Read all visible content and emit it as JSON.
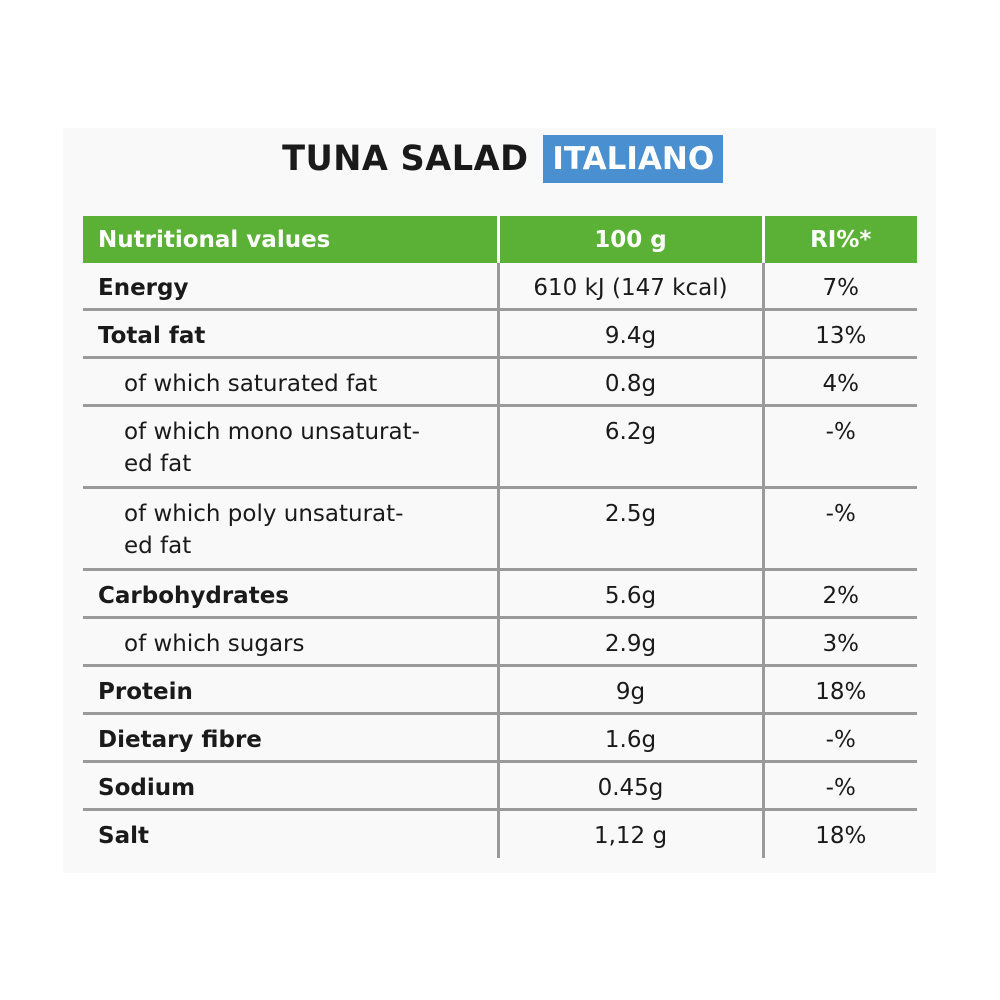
{
  "title": {
    "main": "TUNA SALAD",
    "badge": "ITALIANO"
  },
  "colors": {
    "header_green": "#5bb135",
    "badge_blue": "#4a8fcf",
    "grid_gray": "#9a9a9a"
  },
  "table": {
    "headers": [
      "Nutritional values",
      "100 g",
      "RI%*"
    ],
    "rows": [
      {
        "name": "Energy",
        "per100": "610 kJ (147 kcal)",
        "ri": "7%"
      },
      {
        "name": "Total fat",
        "per100": "9.4g",
        "ri": "13%"
      },
      {
        "name": "of which saturated fat",
        "per100": "0.8g",
        "ri": "4%"
      },
      {
        "name_line1": "of which mono unsaturat-",
        "name_line2": "ed fat",
        "per100": "6.2g",
        "ri": "-%"
      },
      {
        "name_line1": "of which poly unsaturat-",
        "name_line2": "ed fat",
        "per100": "2.5g",
        "ri": "-%"
      },
      {
        "name": "Carbohydrates",
        "per100": "5.6g",
        "ri": "2%"
      },
      {
        "name": "of which sugars",
        "per100": "2.9g",
        "ri": "3%"
      },
      {
        "name": "Protein",
        "per100": "9g",
        "ri": "18%"
      },
      {
        "name": "Dietary fibre",
        "per100": "1.6g",
        "ri": "-%"
      },
      {
        "name": "Sodium",
        "per100": "0.45g",
        "ri": "-%"
      },
      {
        "name": "Salt",
        "per100": "1,12 g",
        "ri": "18%"
      }
    ]
  }
}
